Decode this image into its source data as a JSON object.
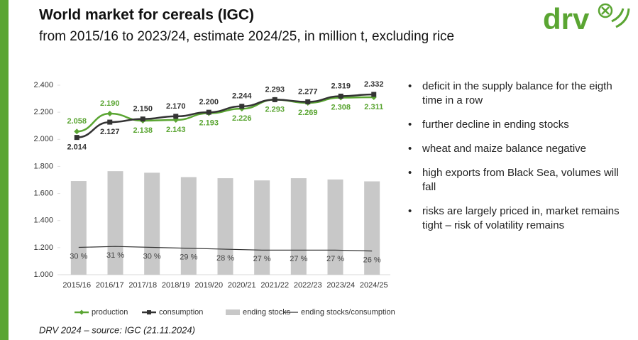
{
  "header": {
    "title": "World market for cereals (IGC)",
    "subtitle": "from 2015/16 to 2023/24, estimate 2024/25, in million t, excluding rice"
  },
  "logo": {
    "text": "drv"
  },
  "chart_data": {
    "type": "line",
    "categories": [
      "2015/16",
      "2016/17",
      "2017/18",
      "2018/19",
      "2019/20",
      "2020/21",
      "2021/22",
      "2022/23",
      "2023/24",
      "2024/25"
    ],
    "ylim": [
      1000,
      2400
    ],
    "yticks": [
      {
        "value": 1000,
        "label": "1.000"
      },
      {
        "value": 1200,
        "label": "1.200"
      },
      {
        "value": 1400,
        "label": "1.400"
      },
      {
        "value": 1600,
        "label": "1.600"
      },
      {
        "value": 1800,
        "label": "1.800"
      },
      {
        "value": 2000,
        "label": "2.000"
      },
      {
        "value": 2200,
        "label": "2.200"
      },
      {
        "value": 2400,
        "label": "2.400"
      }
    ],
    "grid": false,
    "y2lim": [
      0,
      1210
    ],
    "y3lim": [
      0,
      208
    ],
    "legend": "bottom",
    "series": [
      {
        "name": "production",
        "color": "#5aa532",
        "marker": "diamond",
        "values": [
          2058,
          2190,
          2138,
          2143,
          2193,
          2226,
          2293,
          2269,
          2308,
          2311
        ],
        "value_labels": [
          "2.058",
          "2.190",
          "2.138",
          "2.143",
          "2.193",
          "2.226",
          "2.293",
          "2.269",
          "2.308",
          "2.311"
        ]
      },
      {
        "name": "consumption",
        "color": "#333333",
        "marker": "square",
        "values": [
          2014,
          2127,
          2150,
          2170,
          2200,
          2244,
          2293,
          2277,
          2319,
          2332
        ],
        "value_labels": [
          "2.014",
          "2.127",
          "2.150",
          "2.170",
          "2.200",
          "2.244",
          "2.293",
          "2.277",
          "2.319",
          "2.332"
        ]
      },
      {
        "name": "ending stocks",
        "type": "bar",
        "axis": "y2",
        "color": "#c8c8c8",
        "values": [
          null,
          598,
          661,
          651,
          623,
          616,
          602,
          616,
          608,
          596
        ]
      },
      {
        "name": "ending stocks/consumption",
        "type": "line",
        "axis": "y3",
        "color": "#333333",
        "values": [
          null,
          30,
          31,
          30,
          29,
          28,
          27,
          27,
          27,
          26
        ],
        "value_labels": [
          null,
          "30 %",
          "31 %",
          "30 %",
          "29 %",
          "28 %",
          "27 %",
          "27 %",
          "27 %",
          "26 %"
        ]
      }
    ]
  },
  "bullets": [
    "deficit in the supply balance for the eigth time in a row",
    "further decline in ending stocks",
    "wheat and maize balance negative",
    "high exports from Black Sea, volumes will fall",
    "risks are largely priced in, market remains tight – risk of volatility remains"
  ],
  "footer": "DRV 2024 – source: IGC (21.11.2024)"
}
